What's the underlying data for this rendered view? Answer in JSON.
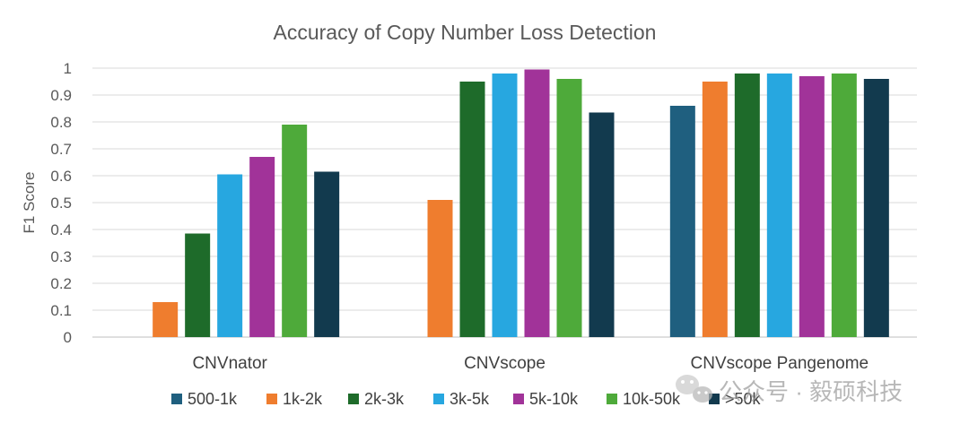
{
  "chart_data": {
    "type": "bar",
    "title": "Accuracy of Copy Number Loss Detection",
    "xlabel": "",
    "ylabel": "F1 Score",
    "ylim": [
      0,
      1
    ],
    "yticks": [
      "0",
      "0.1",
      "0.2",
      "0.3",
      "0.4",
      "0.5",
      "0.6",
      "0.7",
      "0.8",
      "0.9",
      "1"
    ],
    "categories": [
      "CNVnator",
      "CNVscope",
      "CNVscope Pangenome"
    ],
    "grid": true,
    "legend_position": "bottom",
    "series": [
      {
        "name": "500-1k",
        "color": "#1f5f7f",
        "values": [
          0,
          0,
          0.86
        ]
      },
      {
        "name": "1k-2k",
        "color": "#ef7d2e",
        "values": [
          0.13,
          0.51,
          0.95
        ]
      },
      {
        "name": "2k-3k",
        "color": "#1e6b2a",
        "values": [
          0.385,
          0.95,
          0.98
        ]
      },
      {
        "name": "3k-5k",
        "color": "#27a7e0",
        "values": [
          0.605,
          0.98,
          0.98
        ]
      },
      {
        "name": "5k-10k",
        "color": "#a13399",
        "values": [
          0.67,
          0.995,
          0.97
        ]
      },
      {
        "name": "10k-50k",
        "color": "#4eaa3a",
        "values": [
          0.79,
          0.96,
          0.98
        ]
      },
      {
        "name": ">50k",
        "color": "#123a4e",
        "values": [
          0.615,
          0.835,
          0.96
        ]
      }
    ]
  },
  "watermark": {
    "text": "公众号 · 毅硕科技",
    "icon": "wechat-icon"
  }
}
